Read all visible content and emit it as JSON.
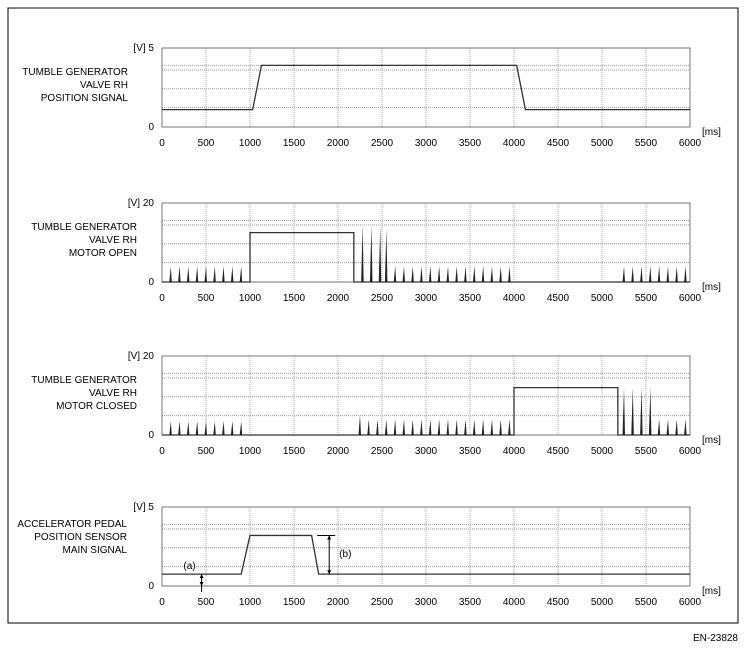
{
  "figure_id": "EN-23828",
  "chart_data": [
    {
      "type": "line",
      "label_lines": [
        "TUMBLE GENERATOR",
        "VALVE RH",
        "POSITION SIGNAL"
      ],
      "yunit": "[V]",
      "xunit": "[ms]",
      "ylim": [
        0,
        5
      ],
      "xlim": [
        0,
        6000
      ],
      "yticks": [
        "0",
        "5"
      ],
      "xticks": [
        "0",
        "500",
        "1000",
        "1500",
        "2000",
        "2500",
        "3000",
        "3500",
        "4000",
        "4500",
        "5000",
        "5500",
        "6000"
      ],
      "grid": true,
      "trace": [
        [
          0,
          1.1
        ],
        [
          1030,
          1.1
        ],
        [
          1130,
          3.9
        ],
        [
          4030,
          3.9
        ],
        [
          4130,
          1.1
        ],
        [
          6000,
          1.1
        ]
      ],
      "pulses": []
    },
    {
      "type": "line",
      "label_lines": [
        "TUMBLE GENERATOR",
        "VALVE RH",
        "MOTOR OPEN"
      ],
      "yunit": "[V]",
      "xunit": "[ms]",
      "ylim": [
        0,
        20
      ],
      "xlim": [
        0,
        6000
      ],
      "yticks": [
        "0",
        "20"
      ],
      "xticks": [
        "0",
        "500",
        "1000",
        "1500",
        "2000",
        "2500",
        "3000",
        "3500",
        "4000",
        "4500",
        "5000",
        "5500",
        "6000"
      ],
      "grid": true,
      "trace": [
        [
          0,
          0
        ],
        [
          1000,
          0
        ],
        [
          1000,
          12.5
        ],
        [
          2180,
          12.5
        ],
        [
          2180,
          0
        ],
        [
          6000,
          0
        ]
      ],
      "pulses": [
        [
          100,
          4
        ],
        [
          200,
          4
        ],
        [
          300,
          4
        ],
        [
          400,
          4
        ],
        [
          500,
          4
        ],
        [
          600,
          4
        ],
        [
          700,
          4
        ],
        [
          800,
          4
        ],
        [
          900,
          4
        ],
        [
          2280,
          14.5
        ],
        [
          2380,
          14.5
        ],
        [
          2480,
          14
        ],
        [
          2550,
          13.5
        ],
        [
          2650,
          4
        ],
        [
          2750,
          4
        ],
        [
          2850,
          4
        ],
        [
          2950,
          4
        ],
        [
          3050,
          4
        ],
        [
          3150,
          4
        ],
        [
          3250,
          4
        ],
        [
          3350,
          4
        ],
        [
          3450,
          4
        ],
        [
          3550,
          4
        ],
        [
          3650,
          4
        ],
        [
          3750,
          4
        ],
        [
          3850,
          4
        ],
        [
          3950,
          4
        ],
        [
          5250,
          4
        ],
        [
          5350,
          4
        ],
        [
          5450,
          4
        ],
        [
          5550,
          4
        ],
        [
          5650,
          4
        ],
        [
          5750,
          4
        ],
        [
          5850,
          4
        ],
        [
          5950,
          4
        ]
      ]
    },
    {
      "type": "line",
      "label_lines": [
        "TUMBLE GENERATOR",
        "VALVE RH",
        "MOTOR CLOSED"
      ],
      "yunit": "[V]",
      "xunit": "[ms]",
      "ylim": [
        0,
        20
      ],
      "xlim": [
        0,
        6000
      ],
      "yticks": [
        "0",
        "20"
      ],
      "xticks": [
        "0",
        "500",
        "1000",
        "1500",
        "2000",
        "2500",
        "3000",
        "3500",
        "4000",
        "4500",
        "5000",
        "5500",
        "6000"
      ],
      "grid": true,
      "trace": [
        [
          0,
          0
        ],
        [
          4000,
          0
        ],
        [
          4000,
          12
        ],
        [
          5180,
          12
        ],
        [
          5180,
          0
        ],
        [
          6000,
          0
        ]
      ],
      "pulses": [
        [
          100,
          3.5
        ],
        [
          200,
          3.5
        ],
        [
          300,
          3.5
        ],
        [
          400,
          3.5
        ],
        [
          500,
          3.5
        ],
        [
          600,
          3.5
        ],
        [
          700,
          3.5
        ],
        [
          800,
          3.5
        ],
        [
          900,
          3.5
        ],
        [
          2250,
          5
        ],
        [
          2350,
          4
        ],
        [
          2450,
          4
        ],
        [
          2550,
          4
        ],
        [
          2650,
          4
        ],
        [
          2750,
          4
        ],
        [
          2850,
          4
        ],
        [
          2950,
          4
        ],
        [
          3050,
          4
        ],
        [
          3150,
          4
        ],
        [
          3250,
          4
        ],
        [
          3350,
          4
        ],
        [
          3450,
          4
        ],
        [
          3550,
          4
        ],
        [
          3650,
          4
        ],
        [
          3750,
          4
        ],
        [
          3850,
          4
        ],
        [
          3950,
          4
        ],
        [
          5250,
          12
        ],
        [
          5350,
          12
        ],
        [
          5450,
          12
        ],
        [
          5550,
          12
        ],
        [
          5650,
          4
        ],
        [
          5750,
          4
        ],
        [
          5850,
          4
        ],
        [
          5950,
          4
        ]
      ]
    },
    {
      "type": "line",
      "label_lines": [
        "ACCELERATOR PEDAL",
        "POSITION SENSOR",
        "MAIN SIGNAL"
      ],
      "yunit": "[V]",
      "xunit": "[ms]",
      "ylim": [
        0,
        5
      ],
      "xlim": [
        0,
        6000
      ],
      "yticks": [
        "0",
        "5"
      ],
      "xticks": [
        "0",
        "500",
        "1000",
        "1500",
        "2000",
        "2500",
        "3000",
        "3500",
        "4000",
        "4500",
        "5000",
        "5500",
        "6000"
      ],
      "grid": true,
      "trace": [
        [
          0,
          0.75
        ],
        [
          900,
          0.75
        ],
        [
          1000,
          3.2
        ],
        [
          1700,
          3.2
        ],
        [
          1780,
          0.75
        ],
        [
          6000,
          0.75
        ]
      ],
      "pulses": [],
      "annotations": [
        {
          "text": "(a)",
          "x": 450,
          "from": 0,
          "to": 0.75
        },
        {
          "text": "(b)",
          "x": 1900,
          "from": 0.75,
          "to": 3.2
        }
      ]
    }
  ]
}
